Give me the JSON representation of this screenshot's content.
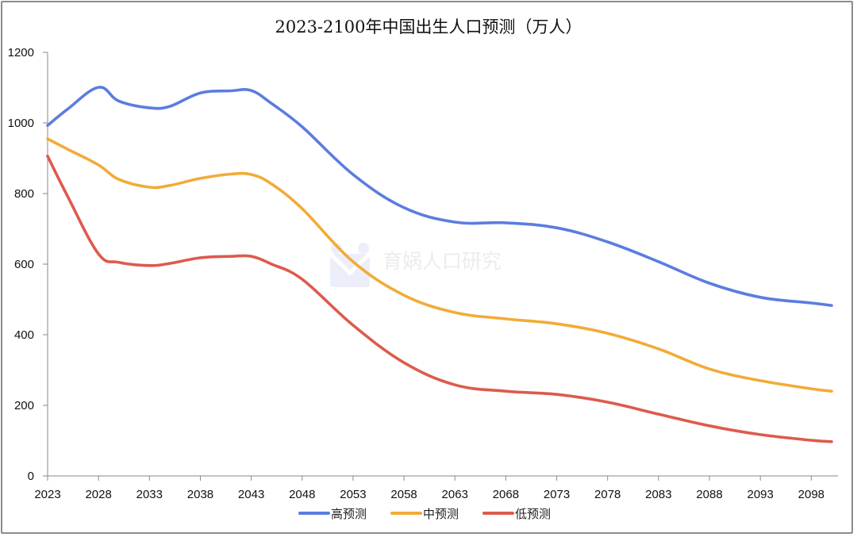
{
  "chart_data": {
    "type": "line",
    "title": "2023-2100年中国出生人口预测（万人）",
    "xlabel": "",
    "ylabel": "",
    "xlim": [
      2023,
      2100
    ],
    "ylim": [
      0,
      1200
    ],
    "y_ticks": [
      0,
      200,
      400,
      600,
      800,
      1000,
      1200
    ],
    "x_ticks": [
      2023,
      2028,
      2033,
      2038,
      2043,
      2048,
      2053,
      2058,
      2063,
      2068,
      2073,
      2078,
      2083,
      2088,
      2093,
      2098
    ],
    "grid": false,
    "legend_position": "bottom",
    "x": [
      2023,
      2025,
      2028,
      2030,
      2033,
      2035,
      2038,
      2041,
      2043,
      2045,
      2048,
      2053,
      2058,
      2063,
      2068,
      2073,
      2078,
      2083,
      2088,
      2093,
      2098,
      2100
    ],
    "series": [
      {
        "name": "高预测",
        "color": "#5b7ddf",
        "values": [
          993,
          1040,
          1101,
          1062,
          1043,
          1047,
          1085,
          1091,
          1092,
          1055,
          989,
          854,
          760,
          719,
          717,
          703,
          663,
          607,
          546,
          506,
          490,
          483
        ]
      },
      {
        "name": "中预测",
        "color": "#f2ab38",
        "values": [
          955,
          925,
          881,
          840,
          818,
          823,
          843,
          855,
          854,
          827,
          757,
          607,
          512,
          463,
          445,
          431,
          404,
          360,
          303,
          270,
          247,
          240
        ]
      },
      {
        "name": "低预测",
        "color": "#dc5b4d",
        "values": [
          906,
          790,
          629,
          605,
          596,
          602,
          618,
          622,
          622,
          600,
          557,
          427,
          321,
          258,
          240,
          231,
          209,
          175,
          142,
          117,
          101,
          97
        ]
      }
    ]
  },
  "watermark": {
    "text": "育娲人口研究",
    "icon": "yuwa-logo-icon"
  }
}
